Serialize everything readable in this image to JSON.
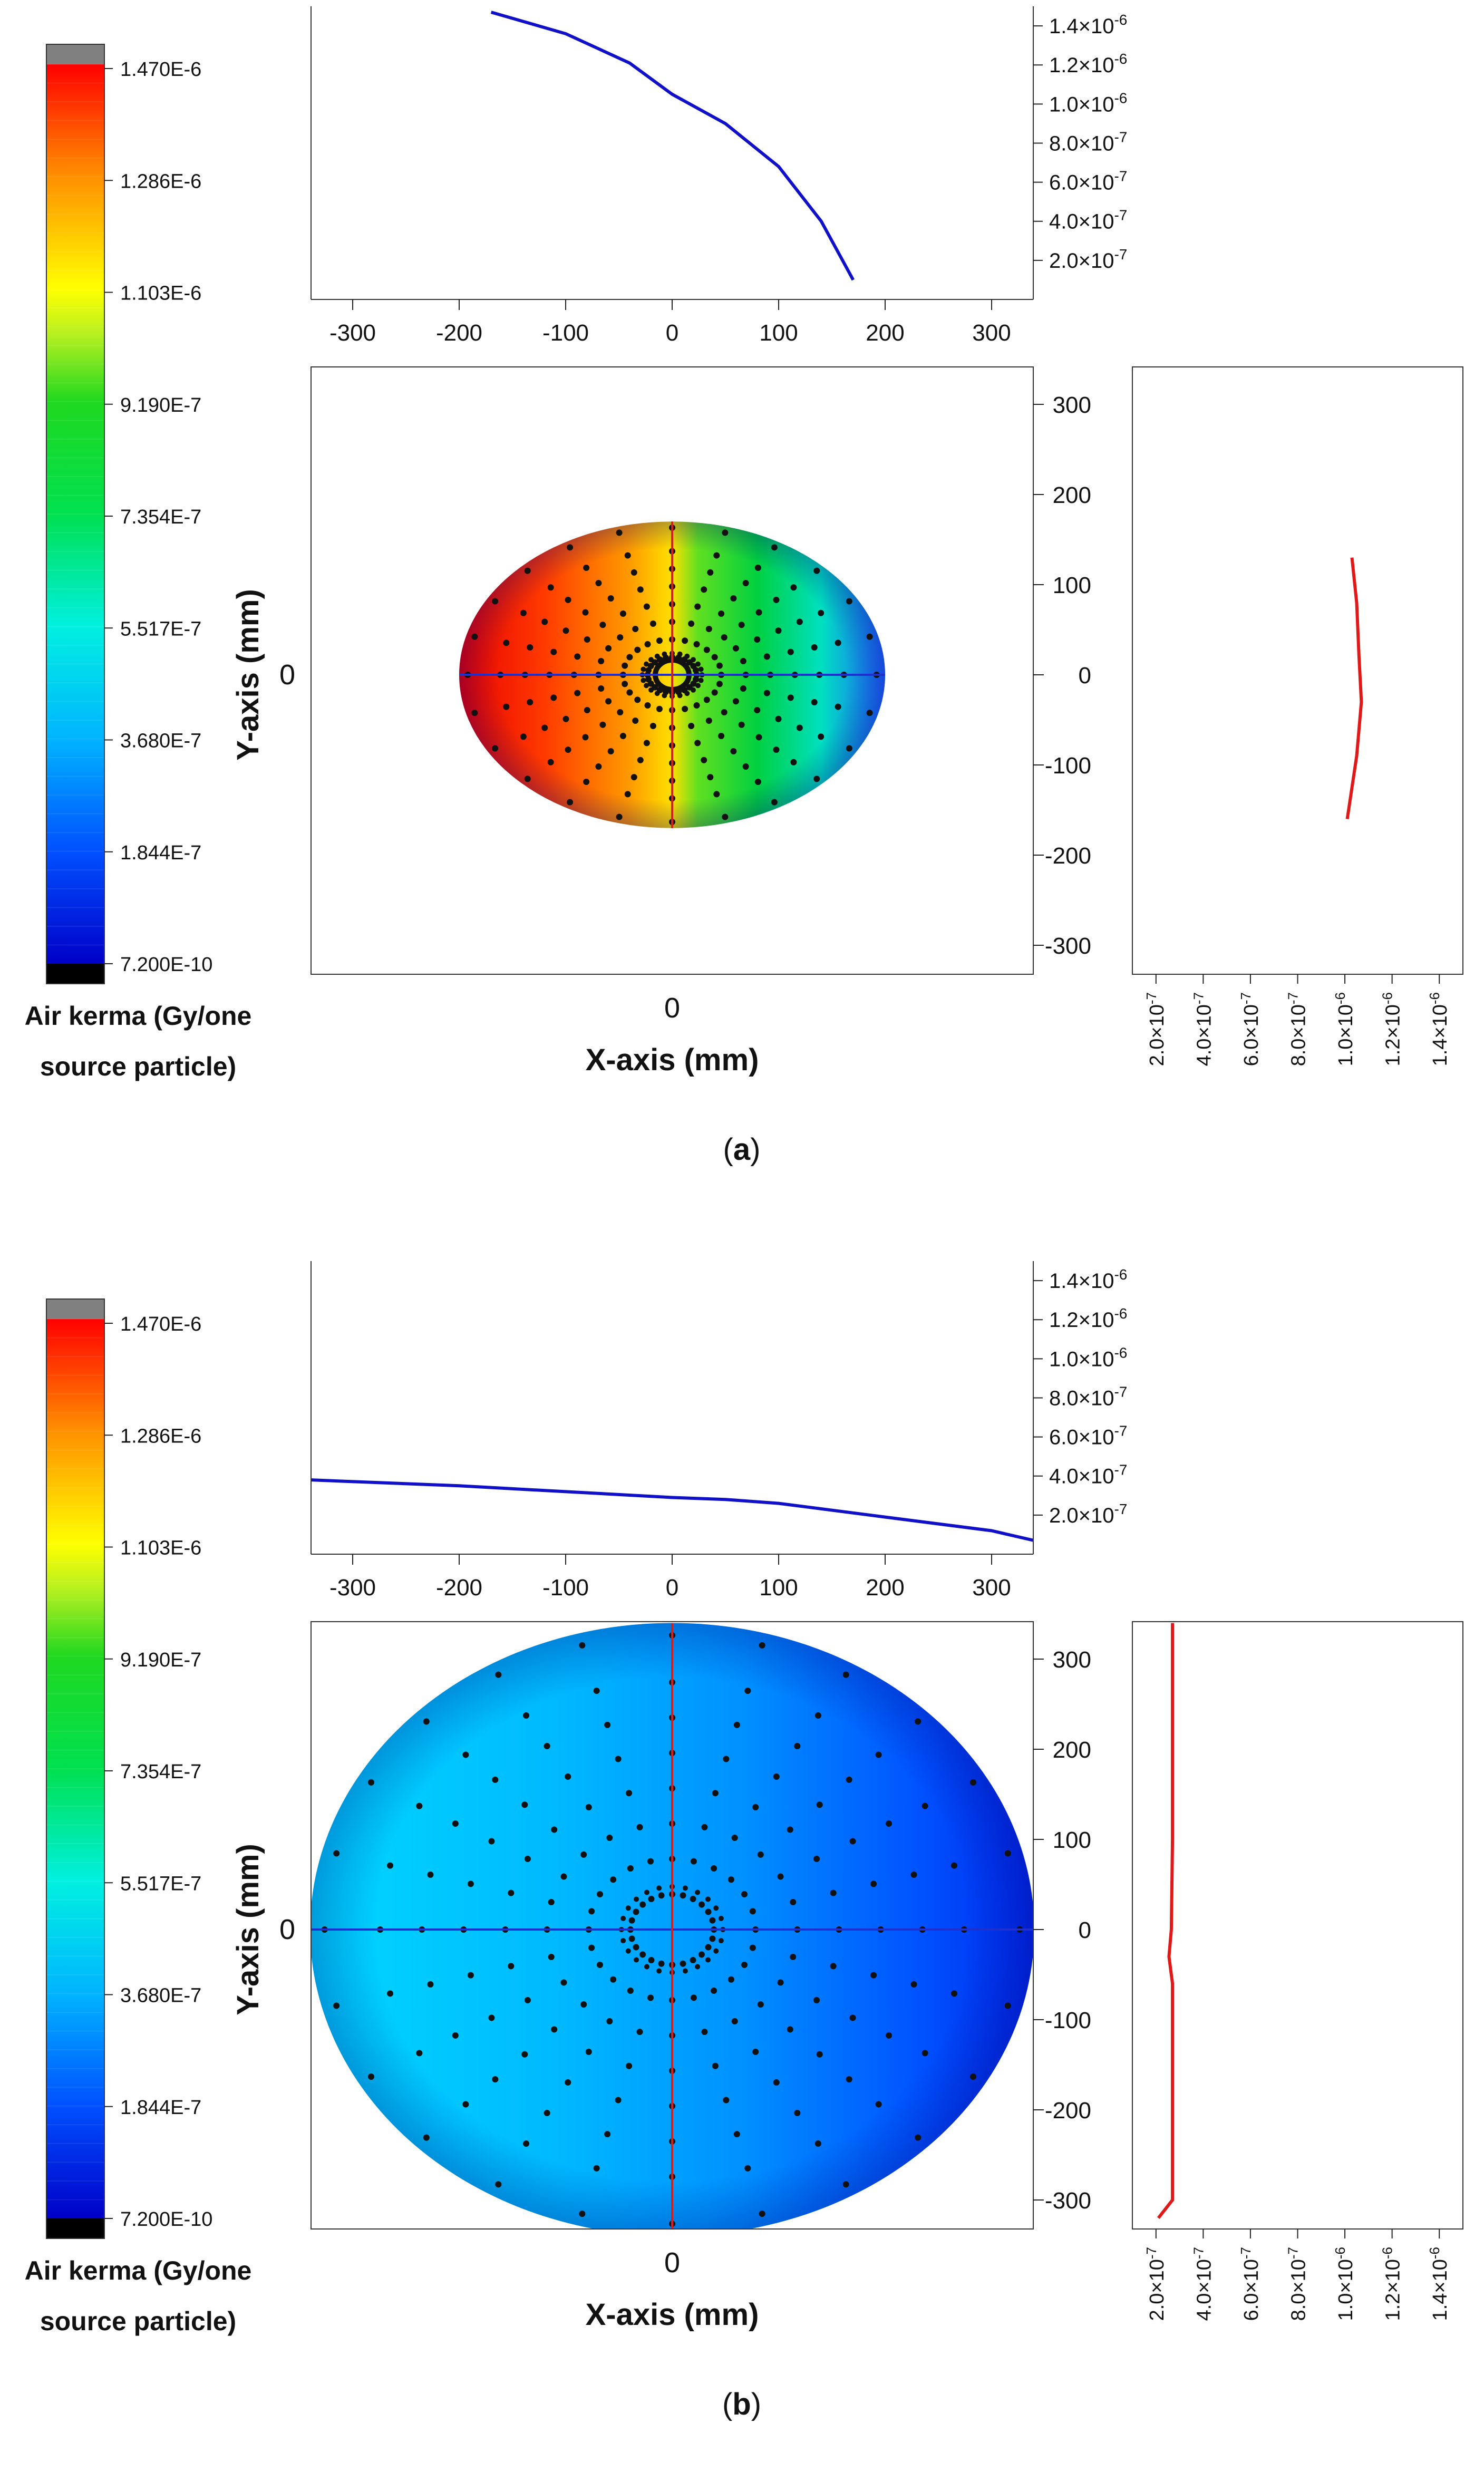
{
  "panels": [
    {
      "id": "a",
      "caption": "(a)",
      "caption_letter": "a",
      "colorbar": {
        "title_line1": "Air kerma (Gy/one",
        "title_line2": "source particle)",
        "tick_labels": [
          "1.470E-6",
          "1.286E-6",
          "1.103E-6",
          "9.190E-7",
          "7.354E-7",
          "5.517E-7",
          "3.680E-7",
          "1.844E-7",
          "7.200E-10"
        ]
      },
      "main": {
        "xlabel": "X-axis (mm)",
        "ylabel": "Y-axis (mm)",
        "x_center_label": "0",
        "y_center_label": "0"
      },
      "top_profile_ticks": {
        "x": [
          "-300",
          "-200",
          "-100",
          "0",
          "100",
          "200",
          "300"
        ],
        "y": [
          "1.4×10",
          "1.2×10",
          "1.0×10",
          "8.0×10",
          "6.0×10",
          "4.0×10",
          "2.0×10"
        ],
        "y_exp": [
          "-6",
          "-6",
          "-6",
          "-7",
          "-7",
          "-7",
          "-7"
        ]
      },
      "right_profile_ticks": {
        "y": [
          "300",
          "200",
          "100",
          "0",
          "-100",
          "-200",
          "-300"
        ],
        "x": [
          "2.0×10",
          "4.0×10",
          "6.0×10",
          "8.0×10",
          "1.0×10",
          "1.2×10",
          "1.4×10"
        ],
        "x_exp": [
          "-7",
          "-7",
          "-7",
          "-7",
          "-6",
          "-6",
          "-6"
        ]
      },
      "chart_data": {
        "type": "heatmap",
        "title": "",
        "field_extent_mm": {
          "x": [
            -200,
            200
          ],
          "y": [
            -170,
            170
          ]
        },
        "color_scale": {
          "min": 7.2e-10,
          "max": 1.47e-06
        },
        "x_profile": {
          "type": "line",
          "color": "#1010c8",
          "x": [
            -170,
            -100,
            -40,
            0,
            50,
            100,
            140,
            170
          ],
          "y": [
            1.47e-06,
            1.36e-06,
            1.21e-06,
            1.05e-06,
            9e-07,
            6.8e-07,
            4e-07,
            1e-07
          ],
          "xlim": [
            -340,
            340
          ],
          "ylim": [
            0,
            1.5e-06
          ]
        },
        "y_profile": {
          "type": "line",
          "color": "#e01818",
          "y": [
            130,
            80,
            20,
            -30,
            -90,
            -160
          ],
          "value": [
            1.03e-06,
            1.05e-06,
            1.06e-06,
            1.07e-06,
            1.05e-06,
            1.01e-06
          ],
          "ylim": [
            -320,
            340
          ],
          "xlim": [
            1e-07,
            1.5e-06
          ]
        }
      }
    },
    {
      "id": "b",
      "caption": "(b)",
      "caption_letter": "b",
      "colorbar": {
        "title_line1": "Air kerma (Gy/one",
        "title_line2": "source particle)",
        "tick_labels": [
          "1.470E-6",
          "1.286E-6",
          "1.103E-6",
          "9.190E-7",
          "7.354E-7",
          "5.517E-7",
          "3.680E-7",
          "1.844E-7",
          "7.200E-10"
        ]
      },
      "main": {
        "xlabel": "X-axis (mm)",
        "ylabel": "Y-axis (mm)",
        "x_center_label": "0",
        "y_center_label": "0"
      },
      "top_profile_ticks": {
        "x": [
          "-300",
          "-200",
          "-100",
          "0",
          "100",
          "200",
          "300"
        ],
        "y": [
          "1.4×10",
          "1.2×10",
          "1.0×10",
          "8.0×10",
          "6.0×10",
          "4.0×10",
          "2.0×10"
        ],
        "y_exp": [
          "-6",
          "-6",
          "-6",
          "-7",
          "-7",
          "-7",
          "-7"
        ]
      },
      "right_profile_ticks": {
        "y": [
          "300",
          "200",
          "100",
          "0",
          "-100",
          "-200",
          "-300"
        ],
        "x": [
          "2.0×10",
          "4.0×10",
          "6.0×10",
          "8.0×10",
          "1.0×10",
          "1.2×10",
          "1.4×10"
        ],
        "x_exp": [
          "-7",
          "-7",
          "-7",
          "-7",
          "-6",
          "-6",
          "-6"
        ]
      },
      "chart_data": {
        "type": "heatmap",
        "title": "",
        "field_extent_mm": {
          "x": [
            -340,
            340
          ],
          "y": [
            -340,
            340
          ]
        },
        "color_scale": {
          "min": 7.2e-10,
          "max": 1.47e-06
        },
        "x_profile": {
          "type": "line",
          "color": "#1010c8",
          "x": [
            -340,
            -200,
            -100,
            0,
            50,
            100,
            200,
            300,
            340
          ],
          "y": [
            3.8e-07,
            3.5e-07,
            3.2e-07,
            2.9e-07,
            2.8e-07,
            2.6e-07,
            1.9e-07,
            1.2e-07,
            7e-08
          ],
          "xlim": [
            -340,
            340
          ],
          "ylim": [
            0,
            1.5e-06
          ]
        },
        "y_profile": {
          "type": "line",
          "color": "#e01818",
          "y": [
            340,
            200,
            100,
            0,
            -30,
            -60,
            -300,
            -320
          ],
          "value": [
            2.7e-07,
            2.7e-07,
            2.7e-07,
            2.65e-07,
            2.55e-07,
            2.7e-07,
            2.7e-07,
            2.1e-07
          ],
          "ylim": [
            -320,
            340
          ],
          "xlim": [
            1e-07,
            1.5e-06
          ]
        }
      }
    }
  ]
}
